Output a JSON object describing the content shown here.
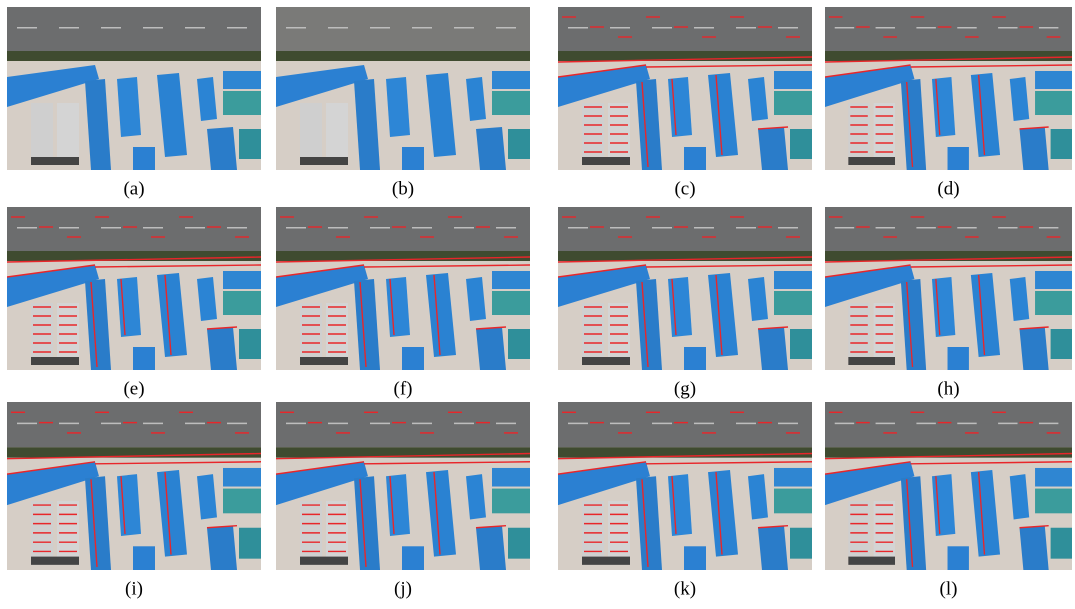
{
  "figure": {
    "panels": [
      {
        "caption": "(a)"
      },
      {
        "caption": "(b)"
      },
      {
        "caption": "(c)"
      },
      {
        "caption": "(d)"
      },
      {
        "caption": "(e)"
      },
      {
        "caption": "(f)"
      },
      {
        "caption": "(g)"
      },
      {
        "caption": "(h)"
      },
      {
        "caption": "(i)"
      },
      {
        "caption": "(j)"
      },
      {
        "caption": "(k)"
      },
      {
        "caption": "(l)"
      }
    ]
  }
}
